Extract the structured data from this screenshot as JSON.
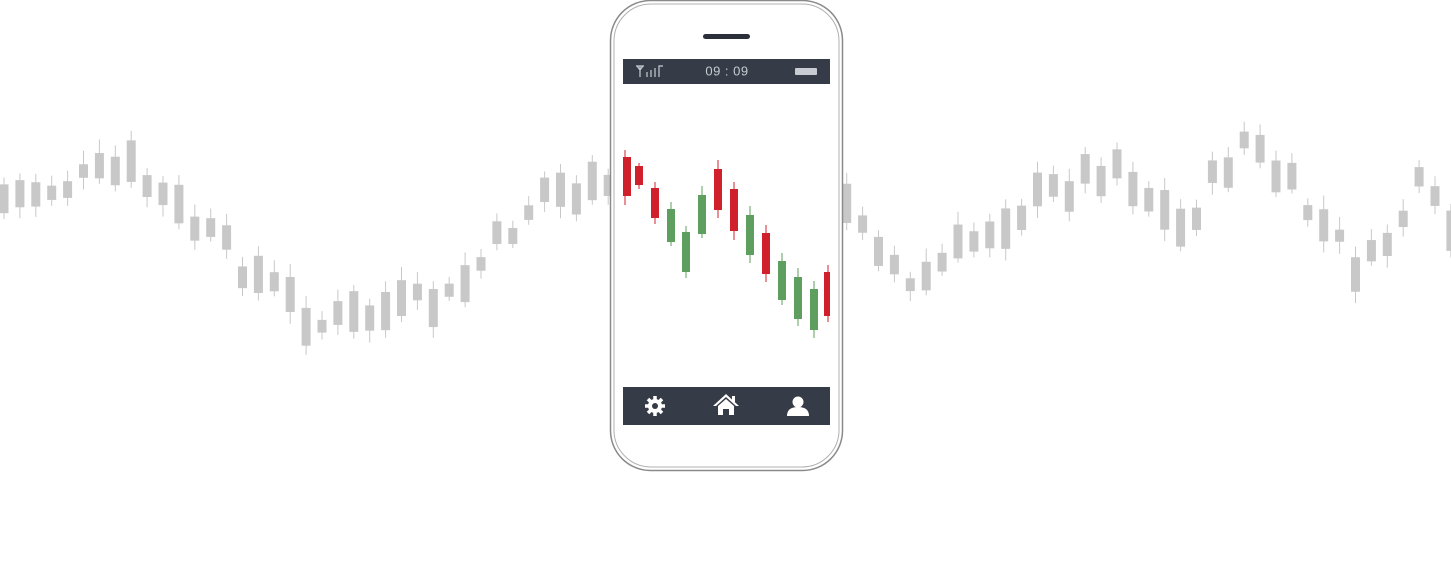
{
  "status_bar": {
    "time": "09 : 09"
  }
}
